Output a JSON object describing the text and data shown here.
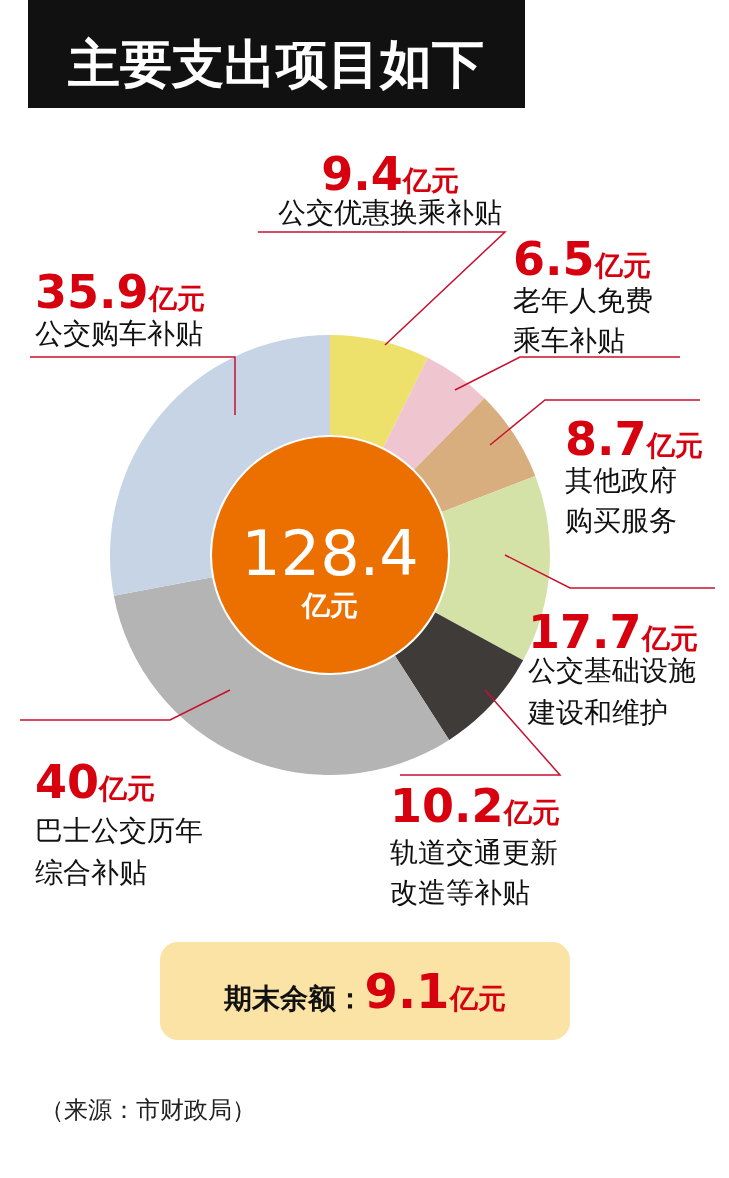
{
  "chart_data": {
    "type": "donut",
    "title": "主要支出项目如下",
    "categories": [
      "公交优惠换乘补贴",
      "老年人免费乘车补贴",
      "其他政府购买服务",
      "公交基础设施建设和维护",
      "轨道交通更新改造等补贴",
      "巴士公交历年综合补贴",
      "公交购车补贴"
    ],
    "values": [
      9.4,
      6.5,
      8.7,
      17.7,
      10.2,
      40,
      35.9
    ],
    "colors": [
      "#ede16c",
      "#efc6d0",
      "#d8ae7e",
      "#d4e2a8",
      "#3f3b39",
      "#b4b4b4",
      "#c6d4e6"
    ],
    "value_labels": [
      "9.4亿元",
      "6.5亿元",
      "8.7亿元",
      "17.7亿元",
      "10.2亿元",
      "40亿元",
      "35.9亿元"
    ],
    "annotations": [
      "128.4亿元",
      "期末余额：9.1亿元",
      "（来源：市财政局）"
    ]
  }
}
